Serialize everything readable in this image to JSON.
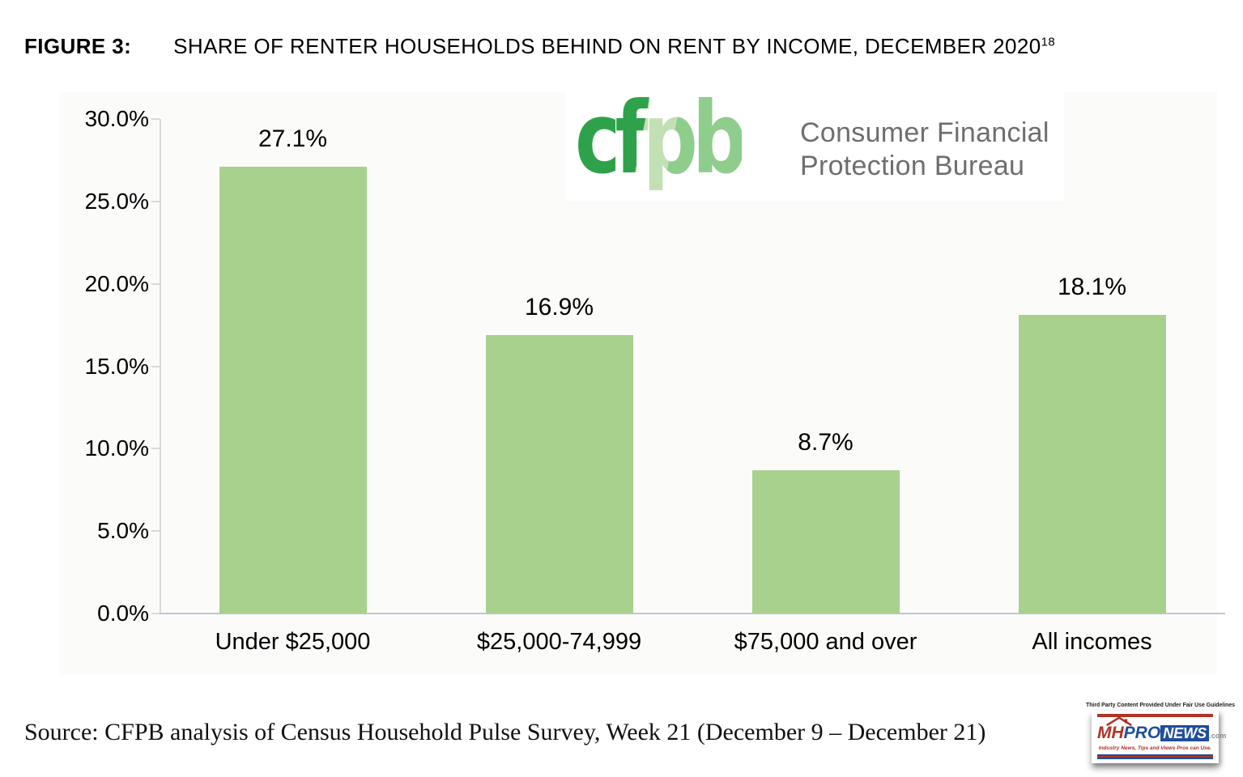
{
  "figure": {
    "label": "FIGURE 3:",
    "title": "SHARE OF RENTER HOUSEHOLDS BEHIND ON RENT BY INCOME, DECEMBER 2020",
    "footnote_marker": "18"
  },
  "chart_data": {
    "type": "bar",
    "title": "SHARE OF RENTER HOUSEHOLDS BEHIND ON RENT BY INCOME, DECEMBER 2020",
    "categories": [
      "Under $25,000",
      "$25,000-74,999",
      "$75,000 and over",
      "All incomes"
    ],
    "values": [
      27.1,
      16.9,
      8.7,
      18.1
    ],
    "value_labels": [
      "27.1%",
      "16.9%",
      "8.7%",
      "18.1%"
    ],
    "y_tick_values": [
      30,
      25,
      20,
      15,
      10,
      5,
      0
    ],
    "y_tick_labels": [
      "30.0%",
      "25.0%",
      "20.0%",
      "15.0%",
      "10.0%",
      "5.0%",
      "0.0%"
    ],
    "ylim": [
      0,
      30
    ],
    "xlabel": "",
    "ylabel": "",
    "grid": false,
    "legend": false,
    "bar_color": "#a9d18e"
  },
  "cfpb_logo": {
    "wordmark": "cfpb",
    "name_line1": "Consumer Financial",
    "name_line2": "Protection Bureau",
    "green_dark": "#2ea24a",
    "green_mid": "#8fcd8c",
    "green_pale": "#c3e0b4",
    "name_gray": "#6e6e6e"
  },
  "source_line": "Source: CFPB analysis of Census Household Pulse Survey, Week 21 (December 9 – December 21)",
  "watermark": {
    "disclaimer": "Third Party Content Provided Under Fair Use Guidelines",
    "brand_mh": "MH",
    "brand_pro": "PRO",
    "brand_news": "NEWS",
    "brand_tld": ".com",
    "tagline": "Industry News, Tips and Views Pros can Use.",
    "red": "#b03226",
    "blue": "#1f4e9c"
  }
}
